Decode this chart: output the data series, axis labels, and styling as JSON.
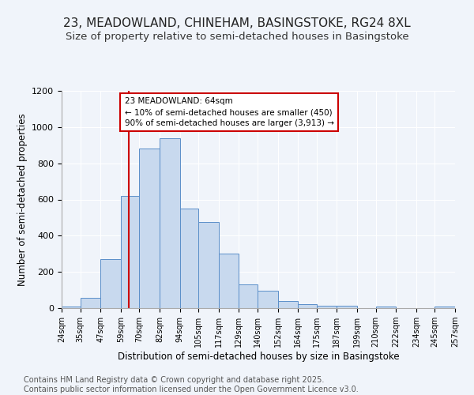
{
  "title": "23, MEADOWLAND, CHINEHAM, BASINGSTOKE, RG24 8XL",
  "subtitle": "Size of property relative to semi-detached houses in Basingstoke",
  "xlabel": "Distribution of semi-detached houses by size in Basingstoke",
  "ylabel": "Number of semi-detached properties",
  "footnote": "Contains HM Land Registry data © Crown copyright and database right 2025.\nContains public sector information licensed under the Open Government Licence v3.0.",
  "bin_edges": [
    24,
    35,
    47,
    59,
    70,
    82,
    94,
    105,
    117,
    129,
    140,
    152,
    164,
    175,
    187,
    199,
    210,
    222,
    234,
    245,
    257
  ],
  "bar_heights": [
    10,
    55,
    270,
    620,
    880,
    940,
    550,
    475,
    300,
    130,
    95,
    38,
    22,
    15,
    15,
    0,
    10,
    0,
    0,
    8
  ],
  "bar_color": "#c8d9ee",
  "bar_edge_color": "#5b8fc9",
  "property_size": 64,
  "red_line_color": "#cc0000",
  "annotation_text": "23 MEADOWLAND: 64sqm\n← 10% of semi-detached houses are smaller (450)\n90% of semi-detached houses are larger (3,913) →",
  "annotation_box_color": "#ffffff",
  "annotation_box_edge": "#cc0000",
  "ylim": [
    0,
    1200
  ],
  "yticks": [
    0,
    200,
    400,
    600,
    800,
    1000,
    1200
  ],
  "background_color": "#f0f4fa",
  "grid_color": "#ffffff",
  "title_fontsize": 11,
  "subtitle_fontsize": 9.5,
  "footnote_fontsize": 7
}
